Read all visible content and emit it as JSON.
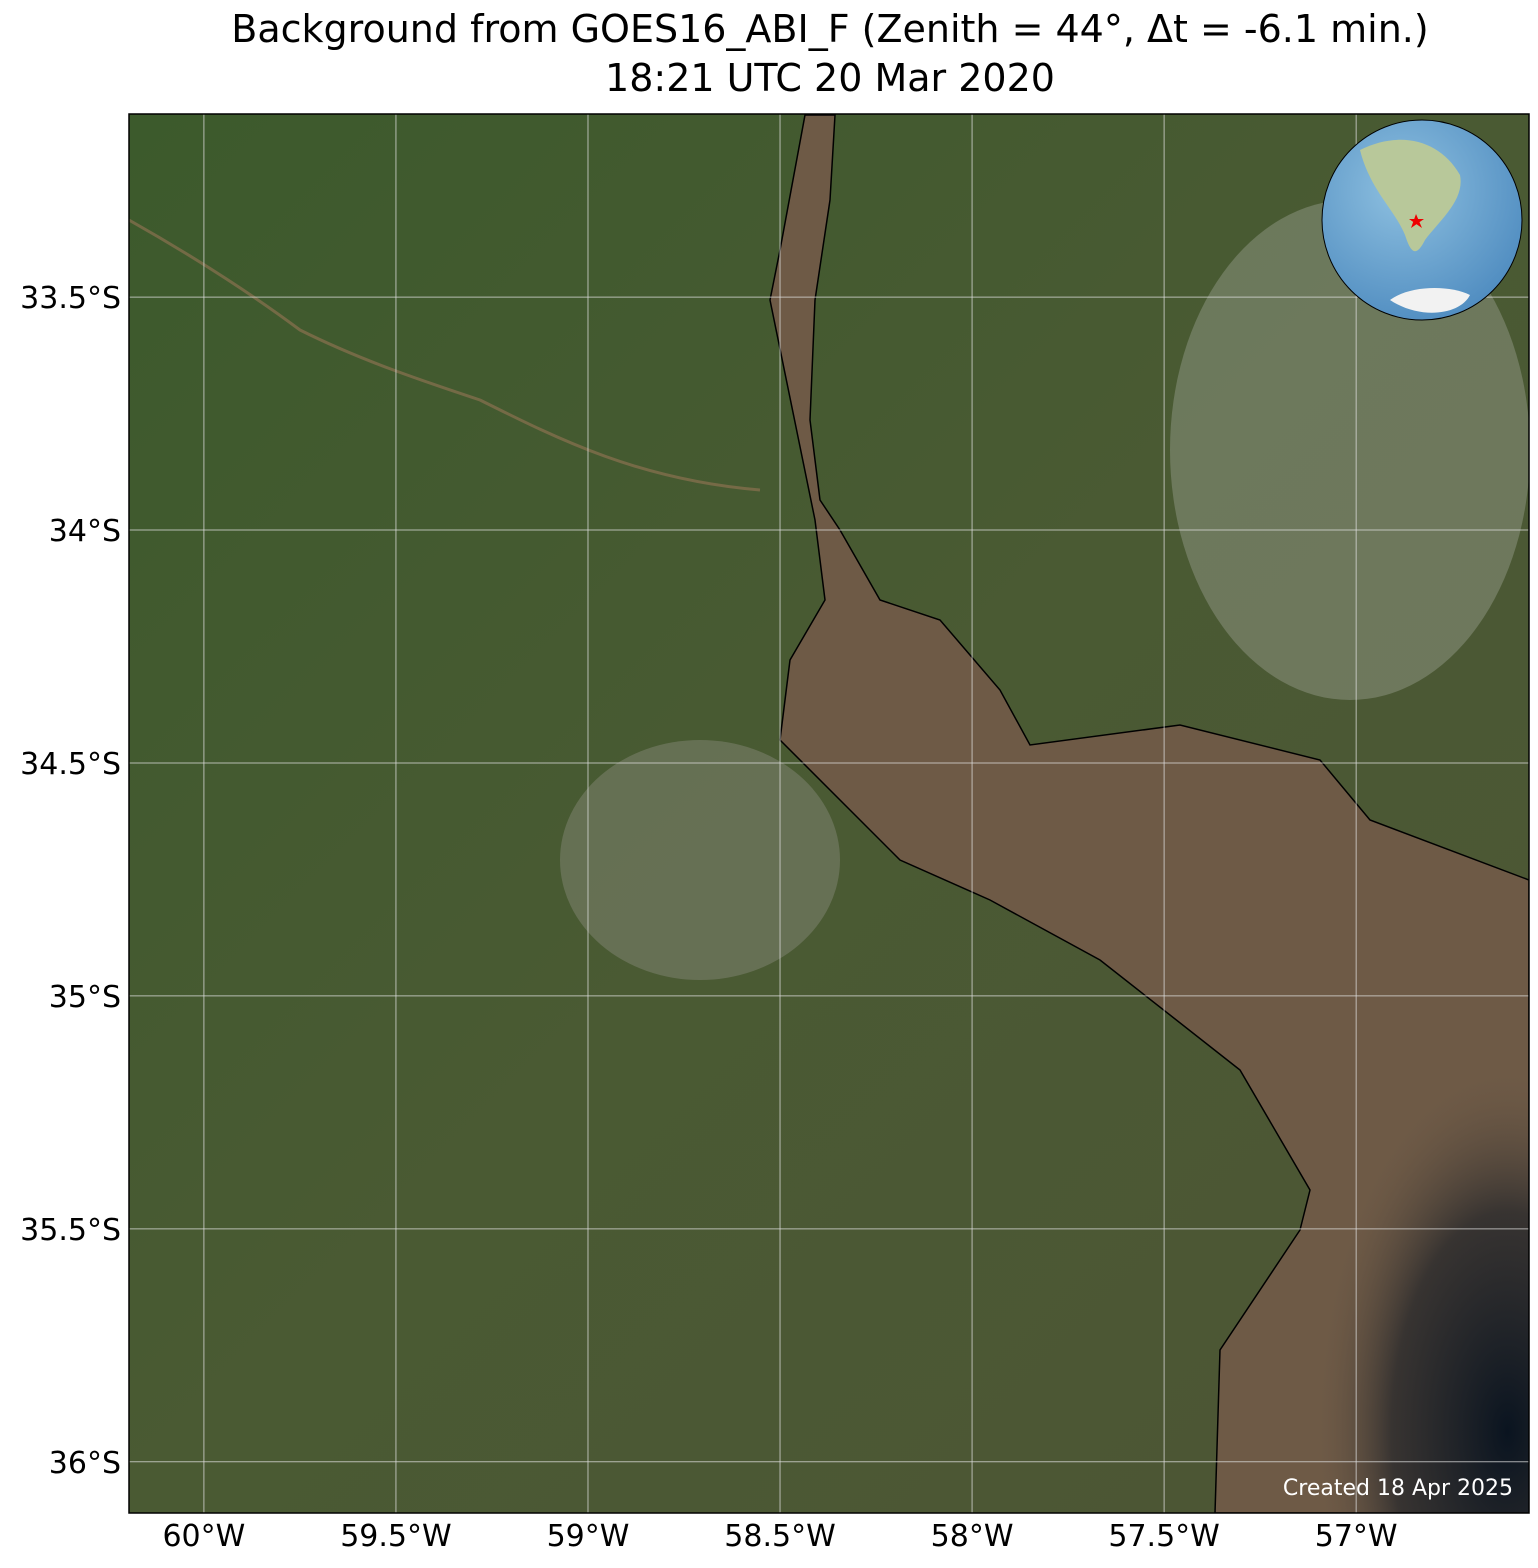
{
  "title": "Background from GOES16_ABI_F (Zenith = 44°, Δt = -6.1 min.)",
  "subtitle": "18:21 UTC 20 Mar 2020",
  "map": {
    "xlim": [
      -60.195,
      -56.55
    ],
    "ylim": [
      -36.11,
      -33.107
    ],
    "xticks": [
      {
        "value": -60,
        "label": "60°W"
      },
      {
        "value": -59.5,
        "label": "59.5°W"
      },
      {
        "value": -59,
        "label": "59°W"
      },
      {
        "value": -58.5,
        "label": "58.5°W"
      },
      {
        "value": -58,
        "label": "58°W"
      },
      {
        "value": -57.5,
        "label": "57.5°W"
      },
      {
        "value": -57,
        "label": "57°W"
      }
    ],
    "yticks": [
      {
        "value": -33.5,
        "label": "33.5°S"
      },
      {
        "value": -34,
        "label": "34°S"
      },
      {
        "value": -34.5,
        "label": "34.5°S"
      },
      {
        "value": -35,
        "label": "35°S"
      },
      {
        "value": -35.5,
        "label": "35.5°S"
      },
      {
        "value": -36,
        "label": "36°S"
      }
    ],
    "grid": true
  },
  "footer": "Created 18 Apr 2025"
}
